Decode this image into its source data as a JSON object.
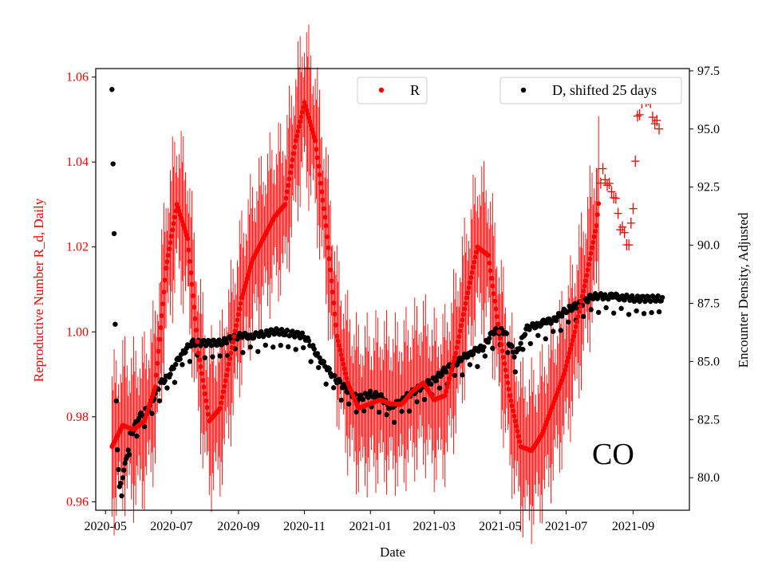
{
  "chart_data": {
    "type": "scatter",
    "title": "",
    "xlabel": "Date",
    "ylabel_left": "Reproductive Number R_d, Daily",
    "ylabel_right": "Encounter Density, Adjusted",
    "annotation": "CO",
    "x_ticks": [
      "2020-05",
      "2020-07",
      "2020-09",
      "2020-11",
      "2021-01",
      "2021-03",
      "2021-05",
      "2021-07",
      "2021-09"
    ],
    "y_left_ticks": [
      "0.96",
      "0.98",
      "1.00",
      "1.02",
      "1.04",
      "1.06"
    ],
    "y_right_ticks": [
      "80.0",
      "82.5",
      "85.0",
      "87.5",
      "90.0",
      "92.5",
      "95.0",
      "97.5"
    ],
    "ylim_left": [
      0.958,
      1.062
    ],
    "ylim_right": [
      78.6,
      97.6
    ],
    "colors": {
      "R": "#ff0000",
      "D": "#000000",
      "left_axis": "#ff0000"
    },
    "series": [
      {
        "name": "R",
        "axis": "left",
        "points": [
          [
            "2020-05-07",
            0.973
          ],
          [
            "2020-05-17",
            0.978
          ],
          [
            "2020-05-27",
            0.977
          ],
          [
            "2020-06-06",
            0.979
          ],
          [
            "2020-06-16",
            0.987
          ],
          [
            "2020-06-26",
            1.015
          ],
          [
            "2020-07-06",
            1.03
          ],
          [
            "2020-07-16",
            1.022
          ],
          [
            "2020-07-26",
            0.995
          ],
          [
            "2020-08-05",
            0.979
          ],
          [
            "2020-08-15",
            0.982
          ],
          [
            "2020-08-25",
            0.995
          ],
          [
            "2020-09-04",
            1.008
          ],
          [
            "2020-09-14",
            1.017
          ],
          [
            "2020-09-24",
            1.022
          ],
          [
            "2020-10-04",
            1.027
          ],
          [
            "2020-10-14",
            1.03
          ],
          [
            "2020-10-24",
            1.045
          ],
          [
            "2020-11-01",
            1.054
          ],
          [
            "2020-11-11",
            1.045
          ],
          [
            "2020-11-21",
            1.025
          ],
          [
            "2020-12-01",
            0.999
          ],
          [
            "2020-12-11",
            0.988
          ],
          [
            "2020-12-21",
            0.982
          ],
          [
            "2020-12-31",
            0.983
          ],
          [
            "2021-01-10",
            0.984
          ],
          [
            "2021-01-20",
            0.983
          ],
          [
            "2021-01-30",
            0.983
          ],
          [
            "2021-02-09",
            0.986
          ],
          [
            "2021-02-19",
            0.988
          ],
          [
            "2021-03-01",
            0.984
          ],
          [
            "2021-03-11",
            0.985
          ],
          [
            "2021-03-21",
            0.995
          ],
          [
            "2021-03-31",
            1.008
          ],
          [
            "2021-04-10",
            1.02
          ],
          [
            "2021-04-20",
            1.018
          ],
          [
            "2021-04-30",
            1.0
          ],
          [
            "2021-05-10",
            0.985
          ],
          [
            "2021-05-20",
            0.973
          ],
          [
            "2021-05-30",
            0.972
          ],
          [
            "2021-06-09",
            0.976
          ],
          [
            "2021-06-19",
            0.983
          ],
          [
            "2021-06-29",
            0.99
          ],
          [
            "2021-07-09",
            1.0
          ],
          [
            "2021-07-19",
            1.012
          ],
          [
            "2021-07-29",
            1.025
          ],
          [
            "2021-08-03",
            1.038
          ],
          [
            "2021-08-10",
            1.034
          ],
          [
            "2021-08-15",
            1.032
          ],
          [
            "2021-08-20",
            1.025
          ],
          [
            "2021-08-24",
            1.023
          ],
          [
            "2021-08-28",
            1.02
          ],
          [
            "2021-09-01",
            1.03
          ],
          [
            "2021-09-05",
            1.05
          ],
          [
            "2021-09-10",
            1.055
          ],
          [
            "2021-09-15",
            1.055
          ],
          [
            "2021-09-20",
            1.05
          ],
          [
            "2021-09-25",
            1.048
          ]
        ]
      },
      {
        "name": "D, shifted 25 days",
        "axis": "right",
        "points": [
          [
            "2020-05-07",
            96.7
          ],
          [
            "2020-05-08",
            93.5
          ],
          [
            "2020-05-09",
            90.5
          ],
          [
            "2020-05-10",
            86.6
          ],
          [
            "2020-05-11",
            83.3
          ],
          [
            "2020-05-12",
            81.2
          ],
          [
            "2020-05-14",
            79.5
          ],
          [
            "2020-05-19",
            80.5
          ],
          [
            "2020-05-24",
            81.8
          ],
          [
            "2020-06-01",
            82.6
          ],
          [
            "2020-06-10",
            83.0
          ],
          [
            "2020-06-20",
            84.0
          ],
          [
            "2020-06-30",
            84.5
          ],
          [
            "2020-07-10",
            85.3
          ],
          [
            "2020-07-20",
            85.8
          ],
          [
            "2020-08-01",
            85.8
          ],
          [
            "2020-08-15",
            85.8
          ],
          [
            "2020-09-01",
            86.1
          ],
          [
            "2020-09-15",
            86.1
          ],
          [
            "2020-09-25",
            86.2
          ],
          [
            "2020-10-05",
            86.3
          ],
          [
            "2020-10-20",
            86.2
          ],
          [
            "2020-11-01",
            86.1
          ],
          [
            "2020-11-10",
            85.5
          ],
          [
            "2020-11-20",
            84.8
          ],
          [
            "2020-12-01",
            84.2
          ],
          [
            "2020-12-10",
            83.8
          ],
          [
            "2020-12-20",
            83.4
          ],
          [
            "2021-01-01",
            83.6
          ],
          [
            "2021-01-10",
            83.5
          ],
          [
            "2021-01-20",
            83.0
          ],
          [
            "2021-02-01",
            83.4
          ],
          [
            "2021-02-10",
            83.7
          ],
          [
            "2021-02-20",
            84.0
          ],
          [
            "2021-03-01",
            84.2
          ],
          [
            "2021-03-10",
            84.6
          ],
          [
            "2021-03-20",
            84.9
          ],
          [
            "2021-04-01",
            85.3
          ],
          [
            "2021-04-15",
            85.6
          ],
          [
            "2021-04-25",
            86.3
          ],
          [
            "2021-05-05",
            86.3
          ],
          [
            "2021-05-15",
            85.2
          ],
          [
            "2021-05-25",
            86.4
          ],
          [
            "2021-06-05",
            86.6
          ],
          [
            "2021-06-20",
            86.8
          ],
          [
            "2021-07-01",
            87.2
          ],
          [
            "2021-07-15",
            87.5
          ],
          [
            "2021-07-25",
            87.8
          ],
          [
            "2021-08-05",
            87.8
          ],
          [
            "2021-08-15",
            87.8
          ],
          [
            "2021-09-01",
            87.7
          ],
          [
            "2021-09-15",
            87.7
          ],
          [
            "2021-09-28",
            87.7
          ]
        ]
      }
    ],
    "legend": {
      "R_label": "R",
      "D_label": "D, shifted 25 days",
      "R_placement": "top-center",
      "D_placement": "top-right"
    }
  }
}
